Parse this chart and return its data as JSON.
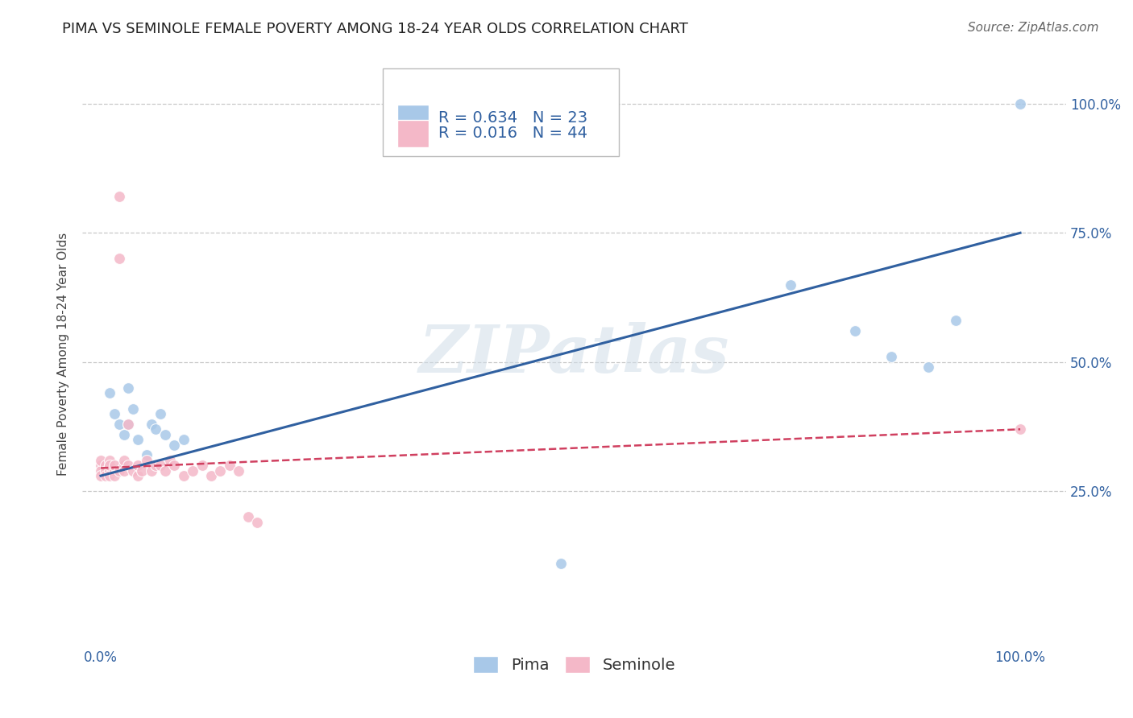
{
  "title": "PIMA VS SEMINOLE FEMALE POVERTY AMONG 18-24 YEAR OLDS CORRELATION CHART",
  "source": "Source: ZipAtlas.com",
  "ylabel": "Female Poverty Among 18-24 Year Olds",
  "pima_R": 0.634,
  "pima_N": 23,
  "seminole_R": 0.016,
  "seminole_N": 44,
  "pima_color": "#a8c8e8",
  "seminole_color": "#f4b8c8",
  "pima_line_color": "#3060a0",
  "seminole_line_color": "#d04060",
  "background_color": "#ffffff",
  "watermark": "ZIPatlas",
  "pima_x": [
    0.005,
    0.01,
    0.015,
    0.02,
    0.025,
    0.03,
    0.03,
    0.035,
    0.04,
    0.05,
    0.055,
    0.06,
    0.065,
    0.07,
    0.08,
    0.09,
    0.5,
    0.75,
    0.82,
    0.86,
    0.9,
    0.93,
    1.0
  ],
  "pima_y": [
    0.3,
    0.44,
    0.4,
    0.38,
    0.36,
    0.45,
    0.38,
    0.41,
    0.35,
    0.32,
    0.38,
    0.37,
    0.4,
    0.36,
    0.34,
    0.35,
    0.11,
    0.65,
    0.56,
    0.51,
    0.49,
    0.58,
    1.0
  ],
  "seminole_x": [
    0.0,
    0.0,
    0.0,
    0.0,
    0.005,
    0.005,
    0.005,
    0.01,
    0.01,
    0.01,
    0.01,
    0.01,
    0.015,
    0.015,
    0.015,
    0.02,
    0.02,
    0.02,
    0.025,
    0.025,
    0.025,
    0.03,
    0.03,
    0.035,
    0.04,
    0.04,
    0.045,
    0.05,
    0.055,
    0.06,
    0.065,
    0.07,
    0.075,
    0.08,
    0.09,
    0.1,
    0.11,
    0.12,
    0.13,
    0.14,
    0.15,
    0.16,
    0.17,
    1.0
  ],
  "seminole_y": [
    0.3,
    0.29,
    0.31,
    0.28,
    0.3,
    0.29,
    0.28,
    0.3,
    0.29,
    0.28,
    0.31,
    0.3,
    0.29,
    0.3,
    0.28,
    0.82,
    0.7,
    0.29,
    0.3,
    0.29,
    0.31,
    0.3,
    0.38,
    0.29,
    0.28,
    0.3,
    0.29,
    0.31,
    0.29,
    0.3,
    0.3,
    0.29,
    0.31,
    0.3,
    0.28,
    0.29,
    0.3,
    0.28,
    0.29,
    0.3,
    0.29,
    0.2,
    0.19,
    0.37
  ],
  "pima_line_x": [
    0.0,
    1.0
  ],
  "pima_line_y": [
    0.28,
    0.75
  ],
  "seminole_line_x": [
    0.0,
    1.0
  ],
  "seminole_line_y": [
    0.295,
    0.37
  ],
  "xtick_positions": [
    0.0,
    0.25,
    0.5,
    0.75,
    1.0
  ],
  "xtick_labels": [
    "0.0%",
    "",
    "",
    "",
    "100.0%"
  ],
  "ytick_positions": [
    0.0,
    0.25,
    0.5,
    0.75,
    1.0
  ],
  "ytick_labels_right": [
    "",
    "25.0%",
    "50.0%",
    "75.0%",
    "100.0%"
  ],
  "xlim": [
    -0.02,
    1.05
  ],
  "ylim": [
    -0.05,
    1.08
  ],
  "grid_color": "#c8c8c8",
  "grid_yticks": [
    0.25,
    0.5,
    0.75,
    1.0
  ],
  "title_fontsize": 13,
  "source_fontsize": 11,
  "tick_fontsize": 12,
  "ylabel_fontsize": 11,
  "legend_fontsize": 14,
  "marker_size": 100
}
